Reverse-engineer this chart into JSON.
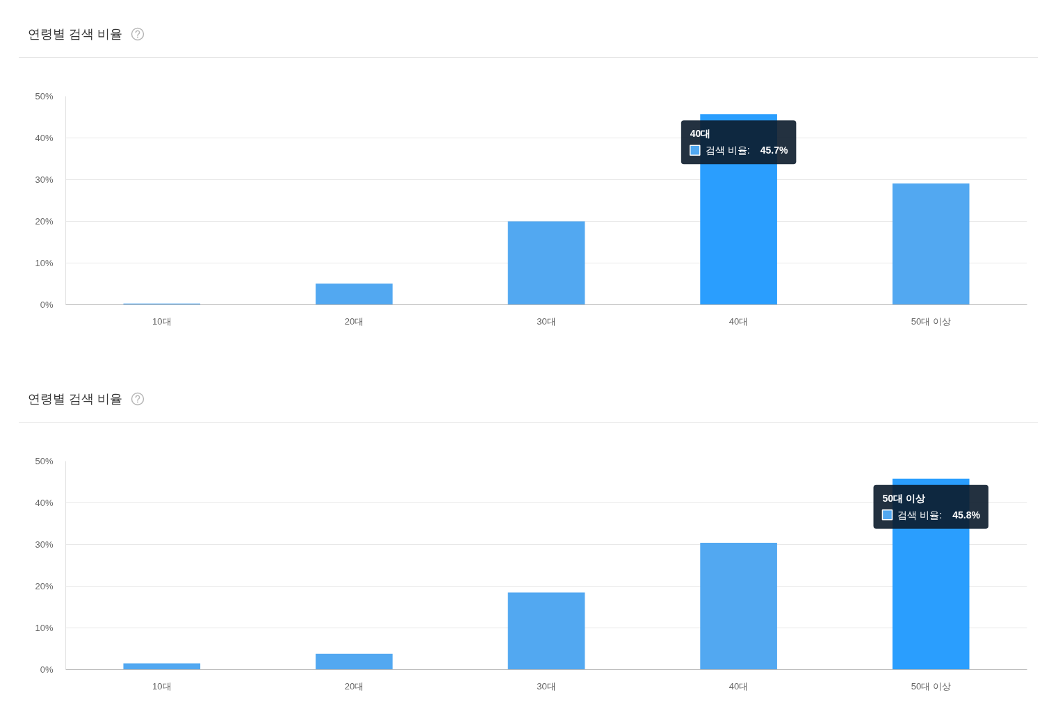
{
  "chart_data": [
    {
      "type": "bar",
      "title": "연령별 검색 비율",
      "categories": [
        "10대",
        "20대",
        "30대",
        "40대",
        "50대 이상"
      ],
      "series": [
        {
          "name": "검색 비율:",
          "color": "#52a8f1",
          "colors": [
            "#52a8f1",
            "#52a8f1",
            "#52a8f1",
            "#2a9efe",
            "#52a8f1"
          ],
          "values": [
            0.3,
            5.1,
            20.0,
            45.7,
            29.1
          ],
          "value_labels": [
            null,
            null,
            null,
            "45.7%",
            null
          ]
        }
      ],
      "ylim": [
        0,
        50
      ],
      "yticks": [
        {
          "value": 0,
          "label": "0%"
        },
        {
          "value": 10,
          "label": "10%"
        },
        {
          "value": 20,
          "label": "20%"
        },
        {
          "value": 30,
          "label": "30%"
        },
        {
          "value": 40,
          "label": "40%"
        },
        {
          "value": 50,
          "label": "50%"
        }
      ],
      "grid": "y"
    },
    {
      "type": "bar",
      "title": "연령별 검색 비율",
      "categories": [
        "10대",
        "20대",
        "30대",
        "40대",
        "50대 이상"
      ],
      "series": [
        {
          "name": "검색 비율:",
          "color": "#52a8f1",
          "colors": [
            "#52a8f1",
            "#52a8f1",
            "#52a8f1",
            "#52a8f1",
            "#2a9efe"
          ],
          "values": [
            1.5,
            3.8,
            18.5,
            30.4,
            45.8
          ],
          "value_labels": [
            null,
            null,
            null,
            null,
            "45.8%"
          ]
        }
      ],
      "ylim": [
        0,
        50
      ],
      "yticks": [
        {
          "value": 0,
          "label": "0%"
        },
        {
          "value": 10,
          "label": "10%"
        },
        {
          "value": 20,
          "label": "20%"
        },
        {
          "value": 30,
          "label": "30%"
        },
        {
          "value": 40,
          "label": "40%"
        },
        {
          "value": 50,
          "label": "50%"
        }
      ],
      "grid": "y"
    }
  ]
}
